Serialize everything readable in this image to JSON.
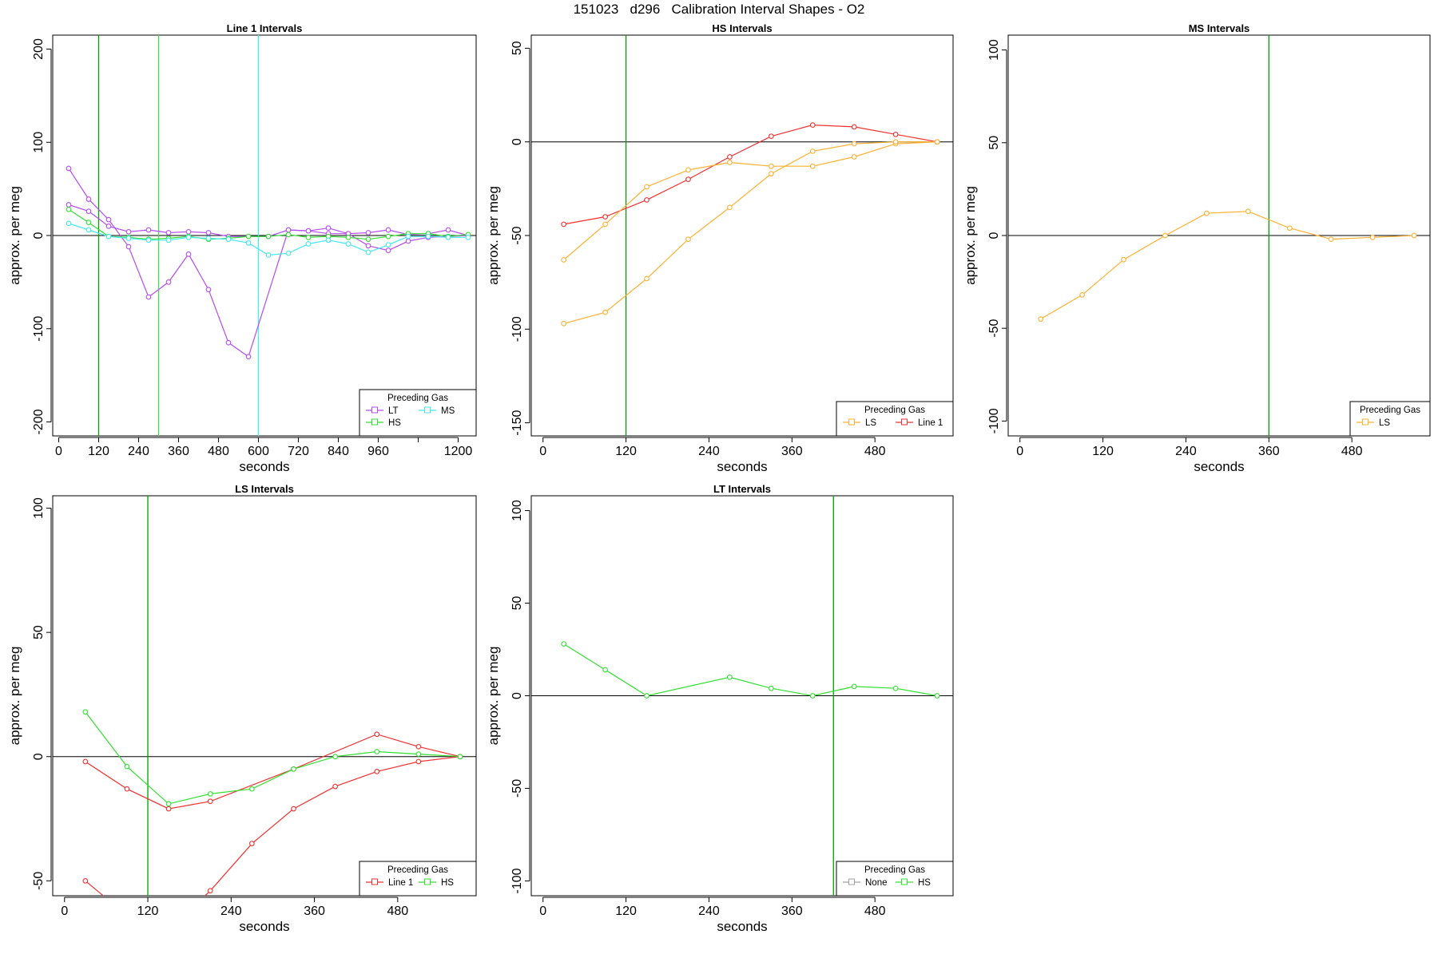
{
  "title": "151023   d296   Calibration Interval Shapes - O2",
  "chart_data": [
    {
      "type": "line",
      "title": "Line 1 Intervals",
      "xlabel": "seconds",
      "ylabel": "approx. per meg",
      "xlim": [
        -18,
        1254
      ],
      "ylim": [
        -215,
        215
      ],
      "xticks": [
        0,
        120,
        240,
        360,
        480,
        600,
        720,
        840,
        960,
        1080,
        1200
      ],
      "xtick_labels": [
        "0",
        "120",
        "240",
        "360",
        "480",
        "600",
        "720",
        "840",
        "960",
        "",
        "1200"
      ],
      "yticks": [
        -200,
        -100,
        0,
        100,
        200
      ],
      "vlines": [
        {
          "x": 120,
          "color": "#00a000"
        },
        {
          "x": 300,
          "color": "#40e040"
        },
        {
          "x": 600,
          "color": "#40f0f0"
        }
      ],
      "hline": 0,
      "legend": {
        "title": "Preceding Gas",
        "placement": "bottom-right",
        "columns": 2,
        "entries": [
          {
            "name": "LT",
            "color": "#b44bef"
          },
          {
            "name": "MS",
            "color": "#40e8f0"
          },
          {
            "name": "HS",
            "color": "#30e030"
          }
        ]
      },
      "series": [
        {
          "name": "LT",
          "color": "#b44bef",
          "points": [
            [
              30,
              72
            ],
            [
              90,
              39
            ],
            [
              150,
              17
            ],
            [
              210,
              -12
            ],
            [
              270,
              -66
            ],
            [
              330,
              -50
            ],
            [
              390,
              -20
            ],
            [
              450,
              -58
            ],
            [
              510,
              -115
            ],
            [
              570,
              -130
            ],
            [
              690,
              6
            ],
            [
              750,
              5
            ],
            [
              810,
              2
            ],
            [
              870,
              2
            ],
            [
              930,
              -11
            ],
            [
              990,
              -16
            ],
            [
              1050,
              -6
            ],
            [
              1110,
              -2
            ],
            [
              1170,
              -1
            ],
            [
              1230,
              0
            ]
          ]
        },
        {
          "name": "LT",
          "color": "#b44bef",
          "points": [
            [
              30,
              33
            ],
            [
              90,
              26
            ],
            [
              150,
              10
            ],
            [
              210,
              4
            ],
            [
              270,
              6
            ],
            [
              330,
              3
            ],
            [
              390,
              4
            ],
            [
              450,
              3
            ],
            [
              510,
              -1
            ],
            [
              570,
              -1
            ],
            [
              630,
              -1
            ],
            [
              690,
              6
            ],
            [
              750,
              5
            ],
            [
              810,
              8
            ],
            [
              870,
              2
            ],
            [
              930,
              3
            ],
            [
              990,
              6
            ],
            [
              1050,
              1
            ],
            [
              1110,
              2
            ],
            [
              1170,
              6
            ],
            [
              1230,
              0
            ]
          ]
        },
        {
          "name": "HS",
          "color": "#30e030",
          "points": [
            [
              30,
              28
            ],
            [
              90,
              14
            ],
            [
              150,
              -1
            ],
            [
              210,
              -2
            ],
            [
              270,
              -4
            ],
            [
              330,
              -3
            ],
            [
              390,
              -1
            ],
            [
              450,
              -4
            ],
            [
              510,
              -3
            ],
            [
              570,
              -1
            ],
            [
              630,
              -1
            ],
            [
              690,
              1
            ],
            [
              750,
              -2
            ],
            [
              810,
              -1
            ],
            [
              870,
              -2
            ],
            [
              930,
              -4
            ],
            [
              990,
              -1
            ],
            [
              1050,
              2
            ],
            [
              1110,
              2
            ],
            [
              1170,
              -1
            ],
            [
              1230,
              1
            ]
          ]
        },
        {
          "name": "MS",
          "color": "#40e8f0",
          "points": [
            [
              30,
              13
            ],
            [
              90,
              6
            ],
            [
              150,
              -1
            ],
            [
              210,
              -3
            ],
            [
              270,
              -5
            ],
            [
              330,
              -5
            ],
            [
              390,
              -2
            ],
            [
              450,
              -3
            ],
            [
              510,
              -4
            ],
            [
              570,
              -8
            ],
            [
              630,
              -21
            ],
            [
              690,
              -19
            ],
            [
              750,
              -9
            ],
            [
              810,
              -5
            ],
            [
              870,
              -9
            ],
            [
              930,
              -18
            ],
            [
              990,
              -10
            ],
            [
              1050,
              -1
            ],
            [
              1110,
              -1
            ],
            [
              1170,
              -2
            ],
            [
              1230,
              -2
            ]
          ]
        }
      ]
    },
    {
      "type": "line",
      "title": "HS Intervals",
      "xlabel": "seconds",
      "ylabel": "approx. per meg",
      "xlim": [
        -17,
        593
      ],
      "ylim": [
        -157,
        57
      ],
      "xticks": [
        0,
        120,
        240,
        360,
        480
      ],
      "xtick_labels": [
        "0",
        "120",
        "240",
        "360",
        "480"
      ],
      "yticks": [
        -150,
        -100,
        -50,
        0,
        50
      ],
      "vlines": [
        {
          "x": 120,
          "color": "#00a000"
        }
      ],
      "hline": 0,
      "legend": {
        "title": "Preceding Gas",
        "placement": "bottom-right",
        "columns": 2,
        "entries": [
          {
            "name": "LS",
            "color": "#ffb030"
          },
          {
            "name": "Line 1",
            "color": "#f03030"
          }
        ]
      },
      "series": [
        {
          "name": "Line 1",
          "color": "#f03030",
          "points": [
            [
              30,
              -44
            ],
            [
              90,
              -40
            ],
            [
              150,
              -31
            ],
            [
              210,
              -20
            ],
            [
              270,
              -8
            ],
            [
              330,
              3
            ],
            [
              390,
              9
            ],
            [
              450,
              8
            ],
            [
              510,
              4
            ],
            [
              570,
              0
            ]
          ]
        },
        {
          "name": "LS",
          "color": "#ffb030",
          "points": [
            [
              30,
              -63
            ],
            [
              90,
              -44
            ],
            [
              150,
              -24
            ],
            [
              210,
              -15
            ],
            [
              270,
              -11
            ],
            [
              330,
              -13
            ],
            [
              390,
              -13
            ],
            [
              450,
              -8
            ],
            [
              510,
              -1
            ],
            [
              570,
              0
            ]
          ]
        },
        {
          "name": "LS",
          "color": "#ffb030",
          "points": [
            [
              30,
              -97
            ],
            [
              90,
              -91
            ],
            [
              150,
              -73
            ],
            [
              210,
              -52
            ],
            [
              270,
              -35
            ],
            [
              330,
              -17
            ],
            [
              390,
              -5
            ],
            [
              450,
              -1
            ],
            [
              510,
              0
            ],
            [
              570,
              0
            ]
          ]
        }
      ]
    },
    {
      "type": "line",
      "title": "MS Intervals",
      "xlabel": "seconds",
      "ylabel": "approx. per meg",
      "xlim": [
        -17,
        593
      ],
      "ylim": [
        -108,
        108
      ],
      "xticks": [
        0,
        120,
        240,
        360,
        480
      ],
      "xtick_labels": [
        "0",
        "120",
        "240",
        "360",
        "480"
      ],
      "yticks": [
        -100,
        -50,
        0,
        50,
        100
      ],
      "vlines": [
        {
          "x": 360,
          "color": "#00a000"
        }
      ],
      "hline": 0,
      "legend": {
        "title": "Preceding Gas",
        "placement": "bottom-right",
        "columns": 1,
        "entries": [
          {
            "name": "LS",
            "color": "#ffb030"
          }
        ]
      },
      "series": [
        {
          "name": "LS",
          "color": "#ffb030",
          "points": [
            [
              30,
              -45
            ],
            [
              90,
              -32
            ],
            [
              150,
              -13
            ],
            [
              210,
              0
            ],
            [
              270,
              12
            ],
            [
              330,
              13
            ],
            [
              390,
              4
            ],
            [
              450,
              -2
            ],
            [
              510,
              -1
            ],
            [
              570,
              0
            ]
          ]
        }
      ]
    },
    {
      "type": "line",
      "title": "LS Intervals",
      "xlabel": "seconds",
      "ylabel": "approx. per meg",
      "xlim": [
        -17,
        593
      ],
      "ylim": [
        -56,
        105
      ],
      "xticks": [
        0,
        120,
        240,
        360,
        480
      ],
      "xtick_labels": [
        "0",
        "120",
        "240",
        "360",
        "480"
      ],
      "yticks": [
        -50,
        0,
        50,
        100
      ],
      "vlines": [
        {
          "x": 120,
          "color": "#00a000"
        }
      ],
      "hline": 0,
      "legend": {
        "title": "Preceding Gas",
        "placement": "bottom-right",
        "columns": 2,
        "entries": [
          {
            "name": "Line 1",
            "color": "#f03030"
          },
          {
            "name": "HS",
            "color": "#30e030"
          }
        ]
      },
      "series": [
        {
          "name": "Line 1",
          "color": "#f03030",
          "points": [
            [
              30,
              -2
            ],
            [
              90,
              -13
            ],
            [
              150,
              -21
            ],
            [
              210,
              -18
            ],
            [
              330,
              -5
            ],
            [
              450,
              9
            ],
            [
              510,
              4
            ],
            [
              570,
              0
            ]
          ]
        },
        {
          "name": "Line 1",
          "color": "#f03030",
          "points": [
            [
              30,
              -50
            ],
            [
              90,
              -64
            ],
            [
              150,
              -70
            ],
            [
              210,
              -54
            ],
            [
              270,
              -35
            ],
            [
              330,
              -21
            ],
            [
              390,
              -12
            ],
            [
              450,
              -6
            ],
            [
              510,
              -2
            ],
            [
              570,
              0
            ]
          ]
        },
        {
          "name": "HS",
          "color": "#30e030",
          "points": [
            [
              30,
              18
            ],
            [
              90,
              -4
            ],
            [
              150,
              -19
            ],
            [
              210,
              -15
            ],
            [
              270,
              -13
            ],
            [
              330,
              -5
            ],
            [
              390,
              0
            ],
            [
              450,
              2
            ],
            [
              510,
              1
            ],
            [
              570,
              0
            ]
          ]
        }
      ]
    },
    {
      "type": "line",
      "title": "LT Intervals",
      "xlabel": "seconds",
      "ylabel": "approx. per meg",
      "xlim": [
        -17,
        593
      ],
      "ylim": [
        -108,
        108
      ],
      "xticks": [
        0,
        120,
        240,
        360,
        480
      ],
      "xtick_labels": [
        "0",
        "120",
        "240",
        "360",
        "480"
      ],
      "yticks": [
        -100,
        -50,
        0,
        50,
        100
      ],
      "vlines": [
        {
          "x": 420,
          "color": "#00a000"
        }
      ],
      "hline": 0,
      "legend": {
        "title": "Preceding Gas",
        "placement": "bottom-right",
        "columns": 2,
        "entries": [
          {
            "name": "None",
            "color": "#a0a0a0"
          },
          {
            "name": "HS",
            "color": "#30e030"
          }
        ]
      },
      "series": [
        {
          "name": "HS",
          "color": "#30e030",
          "points": [
            [
              30,
              28
            ],
            [
              90,
              14
            ],
            [
              150,
              0
            ],
            [
              270,
              10
            ],
            [
              330,
              4
            ],
            [
              390,
              0
            ],
            [
              450,
              5
            ],
            [
              510,
              4
            ],
            [
              570,
              0
            ]
          ]
        }
      ]
    }
  ]
}
